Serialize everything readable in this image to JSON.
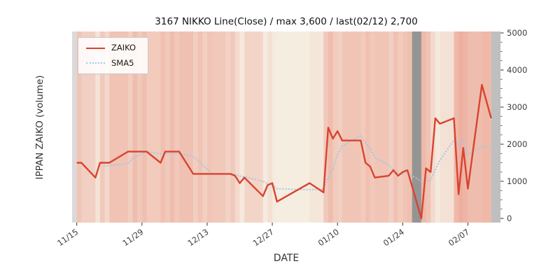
{
  "chart_data": {
    "type": "line",
    "title": "3167 NIKKO Line(Close) / max 3,600 / last(02/12) 2,700",
    "xlabel": "DATE",
    "ylabel": "IPPAN ZAIKO (volume)",
    "max_value": 3600,
    "last_date": "02/12",
    "last_value": 2700,
    "ylim": [
      0,
      5000
    ],
    "yticks": [
      0,
      1000,
      2000,
      3000,
      4000,
      5000
    ],
    "xtick_labels": [
      "11/15",
      "11/29",
      "12/13",
      "12/27",
      "01/10",
      "01/24",
      "02/07"
    ],
    "xtick_days": [
      1,
      15,
      29,
      43,
      57,
      71,
      85
    ],
    "x_day_range": [
      0,
      92
    ],
    "legend_position": "upper-left",
    "x_dates": [
      "11/15",
      "11/16",
      "11/19",
      "11/20",
      "11/21",
      "11/22",
      "11/26",
      "11/27",
      "11/28",
      "11/29",
      "11/30",
      "12/03",
      "12/04",
      "12/05",
      "12/06",
      "12/07",
      "12/10",
      "12/11",
      "12/12",
      "12/13",
      "12/14",
      "12/17",
      "12/18",
      "12/19",
      "12/20",
      "12/21",
      "12/25",
      "12/26",
      "12/27",
      "12/28",
      "01/04",
      "01/07",
      "01/08",
      "01/09",
      "01/10",
      "01/11",
      "01/15",
      "01/16",
      "01/17",
      "01/18",
      "01/21",
      "01/22",
      "01/23",
      "01/24",
      "01/25",
      "01/28",
      "01/29",
      "01/30",
      "01/31",
      "02/01",
      "02/04",
      "02/05",
      "02/06",
      "02/07",
      "02/10",
      "02/12"
    ],
    "x_days": [
      1,
      2,
      5,
      6,
      7,
      8,
      12,
      13,
      14,
      15,
      16,
      19,
      20,
      21,
      22,
      23,
      26,
      27,
      28,
      29,
      30,
      33,
      34,
      35,
      36,
      37,
      41,
      42,
      43,
      44,
      51,
      54,
      55,
      56,
      57,
      58,
      62,
      63,
      64,
      65,
      68,
      69,
      70,
      71,
      72,
      75,
      76,
      77,
      78,
      79,
      82,
      83,
      84,
      85,
      88,
      90
    ],
    "series": [
      {
        "name": "ZAIKO",
        "style": "solid",
        "color": "#d9432e",
        "values": [
          1500,
          1500,
          1100,
          1500,
          1500,
          1500,
          1800,
          1800,
          1800,
          1800,
          1800,
          1500,
          1800,
          1800,
          1800,
          1800,
          1200,
          1200,
          1200,
          1200,
          1200,
          1200,
          1200,
          1150,
          950,
          1100,
          600,
          900,
          950,
          450,
          950,
          700,
          2450,
          2150,
          2350,
          2100,
          2100,
          1500,
          1400,
          1100,
          1150,
          1300,
          1150,
          1250,
          1300,
          0,
          1350,
          1250,
          2700,
          2550,
          2700,
          650,
          1900,
          800,
          3600,
          2700
        ]
      },
      {
        "name": "SMA5",
        "style": "dotted",
        "color": "#a3c6e2",
        "values": [
          null,
          null,
          null,
          null,
          1420,
          1420,
          1480,
          1620,
          1680,
          1740,
          1800,
          1740,
          1740,
          1740,
          1740,
          1740,
          1680,
          1560,
          1440,
          1320,
          1200,
          1200,
          1200,
          1190,
          1140,
          1120,
          1000,
          940,
          900,
          800,
          770,
          790,
          1100,
          1340,
          1720,
          1950,
          2230,
          2040,
          1890,
          1640,
          1450,
          1290,
          1220,
          1190,
          1230,
          1000,
          1010,
          1030,
          1320,
          1570,
          2110,
          1970,
          2100,
          1720,
          1930,
          1930
        ]
      }
    ],
    "background_bands": [
      {
        "from": 0,
        "to": 1,
        "type": "edge-left"
      },
      {
        "from": 1,
        "to": 2,
        "intensity": 0.55
      },
      {
        "from": 2,
        "to": 5,
        "intensity": 0.42
      },
      {
        "from": 5,
        "to": 6,
        "intensity": 0.18
      },
      {
        "from": 6,
        "to": 7,
        "intensity": 0.5
      },
      {
        "from": 7,
        "to": 8,
        "intensity": 0.32
      },
      {
        "from": 8,
        "to": 12,
        "intensity": 0.58
      },
      {
        "from": 12,
        "to": 13,
        "intensity": 0.45
      },
      {
        "from": 13,
        "to": 14,
        "intensity": 0.65
      },
      {
        "from": 14,
        "to": 15,
        "intensity": 0.5
      },
      {
        "from": 15,
        "to": 16,
        "intensity": 0.62
      },
      {
        "from": 16,
        "to": 19,
        "intensity": 0.48
      },
      {
        "from": 19,
        "to": 20,
        "intensity": 0.6
      },
      {
        "from": 20,
        "to": 21,
        "intensity": 0.5
      },
      {
        "from": 21,
        "to": 22,
        "intensity": 0.65
      },
      {
        "from": 22,
        "to": 23,
        "intensity": 0.52
      },
      {
        "from": 23,
        "to": 26,
        "intensity": 0.6
      },
      {
        "from": 26,
        "to": 27,
        "intensity": 0.45
      },
      {
        "from": 27,
        "to": 28,
        "intensity": 0.58
      },
      {
        "from": 28,
        "to": 29,
        "intensity": 0.42
      },
      {
        "from": 29,
        "to": 30,
        "intensity": 0.55
      },
      {
        "from": 30,
        "to": 33,
        "intensity": 0.5
      },
      {
        "from": 33,
        "to": 34,
        "intensity": 0.38
      },
      {
        "from": 34,
        "to": 35,
        "intensity": 0.5
      },
      {
        "from": 35,
        "to": 36,
        "intensity": 0.28
      },
      {
        "from": 36,
        "to": 37,
        "intensity": 0.12
      },
      {
        "from": 37,
        "to": 41,
        "intensity": 0.35
      },
      {
        "from": 41,
        "to": 42,
        "intensity": 0.08
      },
      {
        "from": 42,
        "to": 43,
        "intensity": 0.22
      },
      {
        "from": 43,
        "to": 44,
        "intensity": 0.08
      },
      {
        "from": 44,
        "to": 51,
        "intensity": 0.06
      },
      {
        "from": 51,
        "to": 54,
        "intensity": 0.14
      },
      {
        "from": 54,
        "to": 55,
        "intensity": 0.5
      },
      {
        "from": 55,
        "to": 56,
        "intensity": 0.65
      },
      {
        "from": 56,
        "to": 57,
        "intensity": 0.48
      },
      {
        "from": 57,
        "to": 58,
        "intensity": 0.42
      },
      {
        "from": 58,
        "to": 62,
        "intensity": 0.55
      },
      {
        "from": 62,
        "to": 63,
        "intensity": 0.48
      },
      {
        "from": 63,
        "to": 64,
        "intensity": 0.6
      },
      {
        "from": 64,
        "to": 65,
        "intensity": 0.5
      },
      {
        "from": 65,
        "to": 68,
        "intensity": 0.55
      },
      {
        "from": 68,
        "to": 69,
        "intensity": 0.42
      },
      {
        "from": 69,
        "to": 70,
        "intensity": 0.6
      },
      {
        "from": 70,
        "to": 71,
        "intensity": 0.48
      },
      {
        "from": 71,
        "to": 72,
        "intensity": 0.55
      },
      {
        "from": 72,
        "to": 73,
        "intensity": 0.62
      },
      {
        "from": 73,
        "to": 75,
        "type": "dark"
      },
      {
        "from": 75,
        "to": 76,
        "intensity": 0.7
      },
      {
        "from": 76,
        "to": 77,
        "intensity": 0.58
      },
      {
        "from": 77,
        "to": 78,
        "intensity": 0.3
      },
      {
        "from": 78,
        "to": 79,
        "intensity": 0.1
      },
      {
        "from": 79,
        "to": 82,
        "intensity": 0.2
      },
      {
        "from": 82,
        "to": 83,
        "intensity": 0.7
      },
      {
        "from": 83,
        "to": 84,
        "intensity": 0.82
      },
      {
        "from": 84,
        "to": 85,
        "intensity": 0.75
      },
      {
        "from": 85,
        "to": 88,
        "intensity": 0.65
      },
      {
        "from": 88,
        "to": 90,
        "intensity": 0.72
      },
      {
        "from": 90,
        "to": 92,
        "type": "edge-right"
      }
    ],
    "colors": {
      "plot_bg": "#f7f2e7",
      "band_red_rgb": "224,80,56",
      "dark_band": "#949494",
      "edge_left": "#dadada",
      "edge_right": "#bfbfbf",
      "tick_label": "#3d3d3d",
      "zaiko": "#d9432e",
      "sma5": "#a3c6e2"
    }
  }
}
